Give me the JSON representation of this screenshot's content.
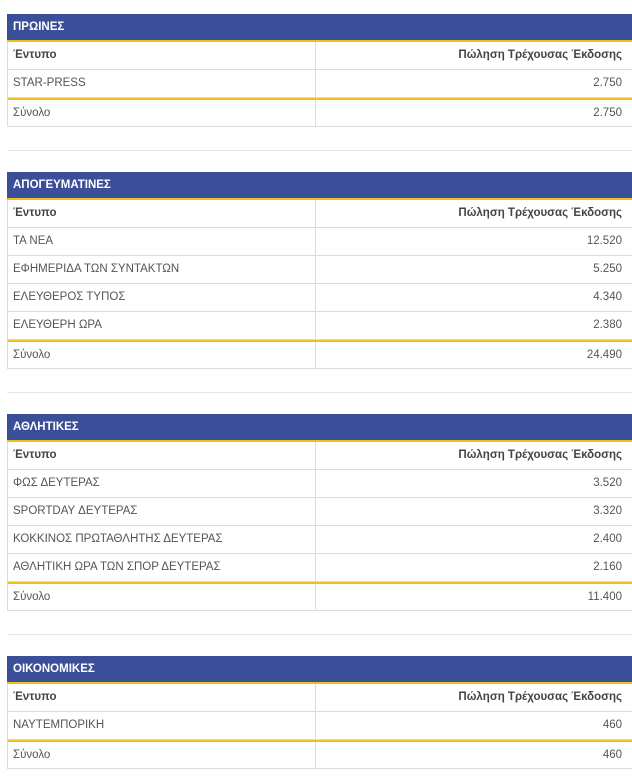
{
  "sections": [
    {
      "title": "ΠΡΩΙΝΕΣ",
      "col_item": "Έντυπο",
      "col_sales": "Πώληση Τρέχουσας Έκδοσης",
      "rows": [
        {
          "name": "STAR-PRESS",
          "value": "2.750"
        }
      ],
      "total_label": "Σύνολο",
      "total_value": "2.750"
    },
    {
      "title": "ΑΠΟΓΕΥΜΑΤΙΝΕΣ",
      "col_item": "Έντυπο",
      "col_sales": "Πώληση Τρέχουσας Έκδοσης",
      "rows": [
        {
          "name": "ΤΑ ΝΕΑ",
          "value": "12.520"
        },
        {
          "name": "ΕΦΗΜΕΡΙΔΑ ΤΩΝ ΣΥΝΤΑΚΤΩΝ",
          "value": "5.250"
        },
        {
          "name": "ΕΛΕΥΘΕΡΟΣ ΤΥΠΟΣ",
          "value": "4.340"
        },
        {
          "name": "ΕΛΕΥΘΕΡΗ ΩΡΑ",
          "value": "2.380"
        }
      ],
      "total_label": "Σύνολο",
      "total_value": "24.490"
    },
    {
      "title": "ΑΘΛΗΤΙΚΕΣ",
      "col_item": "Έντυπο",
      "col_sales": "Πώληση Τρέχουσας Έκδοσης",
      "rows": [
        {
          "name": "ΦΩΣ ΔΕΥΤΕΡΑΣ",
          "value": "3.520"
        },
        {
          "name": "SPORTDAY ΔΕΥΤΕΡΑΣ",
          "value": "3.320"
        },
        {
          "name": "ΚΟΚΚΙΝΟΣ ΠΡΩΤΑΘΛΗΤΗΣ ΔΕΥΤΕΡΑΣ",
          "value": "2.400"
        },
        {
          "name": "ΑΘΛΗΤΙΚΗ ΩΡΑ ΤΩΝ ΣΠΟΡ ΔΕΥΤΕΡΑΣ",
          "value": "2.160"
        }
      ],
      "total_label": "Σύνολο",
      "total_value": "11.400"
    },
    {
      "title": "ΟΙΚΟΝΟΜΙΚΕΣ",
      "col_item": "Έντυπο",
      "col_sales": "Πώληση Τρέχουσας Έκδοσης",
      "rows": [
        {
          "name": "ΝΑΥΤΕΜΠΟΡΙΚΗ",
          "value": "460"
        }
      ],
      "total_label": "Σύνολο",
      "total_value": "460"
    }
  ],
  "colors": {
    "header_bg": "#3a4e9a",
    "accent": "#f0c020"
  }
}
